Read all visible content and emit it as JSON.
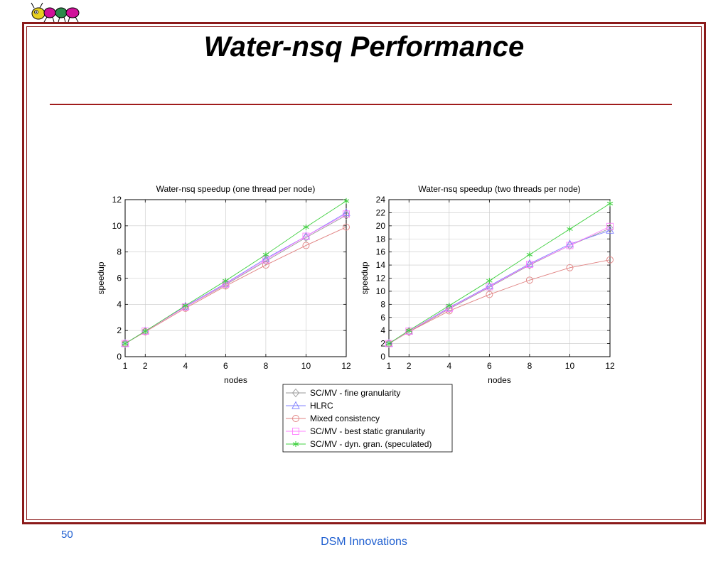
{
  "slide": {
    "title": "Water-nsq Performance",
    "page_number": "50",
    "footer": "DSM Innovations",
    "accent_color": "#8b1a1a",
    "footer_color": "#1f5fd0",
    "logo": "ant-logo"
  },
  "chart_data": [
    {
      "type": "line",
      "title": "Water-nsq speedup (one thread per node)",
      "xlabel": "nodes",
      "ylabel": "speedup",
      "xlim": [
        1,
        12
      ],
      "ylim": [
        0,
        12
      ],
      "x_ticks": [
        1,
        2,
        4,
        6,
        8,
        10,
        12
      ],
      "y_ticks": [
        0,
        2,
        4,
        6,
        8,
        10,
        12
      ],
      "grid": true,
      "x": [
        1,
        2,
        4,
        6,
        8,
        10,
        12
      ],
      "series": [
        {
          "name": "SC/MV - fine granularity",
          "marker": "diamond",
          "color": "#9a9a9a",
          "values": [
            1.0,
            1.95,
            3.8,
            5.5,
            7.3,
            9.1,
            10.8
          ]
        },
        {
          "name": "HLRC",
          "marker": "triangle",
          "color": "#8080ff",
          "values": [
            1.0,
            1.95,
            3.85,
            5.6,
            7.5,
            9.2,
            11.0
          ]
        },
        {
          "name": "Mixed consistency",
          "marker": "circle",
          "color": "#e08080",
          "values": [
            1.0,
            1.9,
            3.7,
            5.4,
            7.0,
            8.5,
            9.9
          ]
        },
        {
          "name": "SC/MV - best static granularity",
          "marker": "square",
          "color": "#ff80ff",
          "values": [
            1.0,
            1.95,
            3.8,
            5.55,
            7.4,
            9.2,
            10.9
          ]
        },
        {
          "name": "SC/MV - dyn. gran. (speculated)",
          "marker": "star",
          "color": "#40d040",
          "values": [
            1.0,
            1.95,
            3.9,
            5.8,
            7.8,
            9.9,
            11.9
          ]
        }
      ]
    },
    {
      "type": "line",
      "title": "Water-nsq speedup (two threads per node)",
      "xlabel": "nodes",
      "ylabel": "speedup",
      "xlim": [
        1,
        12
      ],
      "ylim": [
        0,
        24
      ],
      "x_ticks": [
        1,
        2,
        4,
        6,
        8,
        10,
        12
      ],
      "y_ticks": [
        0,
        2,
        4,
        6,
        8,
        10,
        12,
        14,
        16,
        18,
        20,
        22,
        24
      ],
      "grid": true,
      "x": [
        1,
        2,
        4,
        6,
        8,
        10,
        12
      ],
      "series": [
        {
          "name": "SC/MV - fine granularity",
          "marker": "diamond",
          "color": "#9a9a9a",
          "values": [
            2.0,
            3.8,
            7.3,
            10.6,
            14.0,
            17.0,
            19.6
          ]
        },
        {
          "name": "HLRC",
          "marker": "triangle",
          "color": "#8080ff",
          "values": [
            2.0,
            3.9,
            7.5,
            10.8,
            14.2,
            17.2,
            19.3
          ]
        },
        {
          "name": "Mixed consistency",
          "marker": "circle",
          "color": "#e08080",
          "values": [
            2.0,
            3.8,
            7.0,
            9.5,
            11.7,
            13.6,
            14.8
          ]
        },
        {
          "name": "SC/MV - best static granularity",
          "marker": "square",
          "color": "#ff80ff",
          "values": [
            2.0,
            3.9,
            7.4,
            10.7,
            14.1,
            17.0,
            19.9
          ]
        },
        {
          "name": "SC/MV - dyn. gran. (speculated)",
          "marker": "star",
          "color": "#40d040",
          "values": [
            2.0,
            4.0,
            7.8,
            11.6,
            15.6,
            19.5,
            23.4
          ]
        }
      ]
    }
  ],
  "legend": {
    "entries": [
      {
        "label": "SC/MV - fine granularity",
        "marker": "diamond",
        "color": "#9a9a9a"
      },
      {
        "label": "HLRC",
        "marker": "triangle",
        "color": "#8080ff"
      },
      {
        "label": "Mixed consistency",
        "marker": "circle",
        "color": "#e08080"
      },
      {
        "label": "SC/MV - best static granularity",
        "marker": "square",
        "color": "#ff80ff"
      },
      {
        "label": "SC/MV - dyn. gran. (speculated)",
        "marker": "star",
        "color": "#40d040"
      }
    ]
  }
}
